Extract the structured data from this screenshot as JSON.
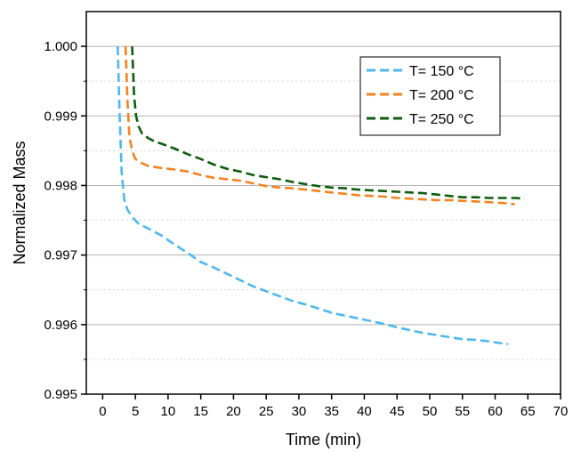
{
  "chart_data": {
    "type": "line",
    "title": "",
    "xlabel": "Time (min)",
    "ylabel": "Normalized Mass",
    "xlim": [
      -2.5,
      70
    ],
    "ylim": [
      0.995,
      1.0005
    ],
    "x_ticks": [
      0,
      5,
      10,
      15,
      20,
      25,
      30,
      35,
      40,
      45,
      50,
      55,
      60,
      65,
      70
    ],
    "x_tick_labels": [
      "0",
      "5",
      "10",
      "15",
      "20",
      "25",
      "30",
      "35",
      "40",
      "45",
      "50",
      "55",
      "60",
      "65",
      "70"
    ],
    "y_ticks": [
      0.995,
      0.996,
      0.997,
      0.998,
      0.999,
      1.0
    ],
    "y_tick_labels": [
      "0.995",
      "0.996",
      "0.997",
      "0.998",
      "0.999",
      "1.000"
    ],
    "grid": true,
    "legend_position": "top-right",
    "series": [
      {
        "name": "T= 150 °C",
        "color": "#4db8f0",
        "x": [
          2.3,
          2.6,
          2.9,
          3.3,
          3.8,
          4.5,
          5.5,
          7,
          9,
          11,
          13,
          15,
          17,
          19,
          21,
          23,
          25,
          27,
          29,
          31,
          33,
          35,
          37,
          39,
          41,
          43,
          45,
          47,
          49,
          51,
          53,
          55,
          57,
          59,
          61,
          62
        ],
        "values": [
          1.0,
          0.999,
          0.9982,
          0.9978,
          0.99765,
          0.99755,
          0.99745,
          0.99738,
          0.99728,
          0.99715,
          0.99703,
          0.9969,
          0.99682,
          0.99673,
          0.99664,
          0.99655,
          0.99648,
          0.99641,
          0.99634,
          0.99629,
          0.99623,
          0.99617,
          0.99613,
          0.99609,
          0.99605,
          0.99601,
          0.99596,
          0.99592,
          0.99588,
          0.99585,
          0.99582,
          0.99579,
          0.99578,
          0.99576,
          0.99573,
          0.99572
        ]
      },
      {
        "name": "T= 200 °C",
        "color": "#f5821f",
        "x": [
          3.5,
          3.8,
          4.1,
          4.5,
          5,
          6,
          7,
          9,
          11,
          13,
          15,
          17,
          19,
          21,
          23,
          25,
          27,
          29,
          31,
          33,
          35,
          37,
          39,
          41,
          43,
          45,
          47,
          49,
          51,
          53,
          55,
          57,
          59,
          61,
          63
        ],
        "values": [
          1.0,
          0.9992,
          0.9987,
          0.9985,
          0.99838,
          0.99832,
          0.99828,
          0.99825,
          0.99823,
          0.9982,
          0.99815,
          0.99811,
          0.99809,
          0.99807,
          0.99803,
          0.99799,
          0.99797,
          0.99796,
          0.99794,
          0.99792,
          0.9979,
          0.99788,
          0.99786,
          0.99785,
          0.99784,
          0.99782,
          0.99781,
          0.9978,
          0.99779,
          0.99779,
          0.99778,
          0.99777,
          0.99776,
          0.99775,
          0.99773
        ]
      },
      {
        "name": "T= 250 °C",
        "color": "#0e5c0e",
        "x": [
          4.5,
          4.8,
          5.1,
          5.5,
          6,
          7,
          8,
          9,
          11,
          13,
          15,
          17,
          19,
          21,
          23,
          25,
          27,
          29,
          31,
          33,
          35,
          37,
          39,
          41,
          43,
          45,
          47,
          49,
          51,
          53,
          55,
          57,
          59,
          61,
          63,
          64.5
        ],
        "values": [
          1.0,
          0.9993,
          0.999,
          0.99885,
          0.99875,
          0.99868,
          0.99863,
          0.9986,
          0.99853,
          0.99845,
          0.99838,
          0.9983,
          0.99824,
          0.9982,
          0.99815,
          0.99812,
          0.99809,
          0.99805,
          0.99802,
          0.99799,
          0.99797,
          0.99796,
          0.99794,
          0.99793,
          0.99792,
          0.99791,
          0.9979,
          0.99789,
          0.99787,
          0.99785,
          0.99783,
          0.99783,
          0.99782,
          0.99782,
          0.99782,
          0.99781
        ]
      }
    ]
  }
}
